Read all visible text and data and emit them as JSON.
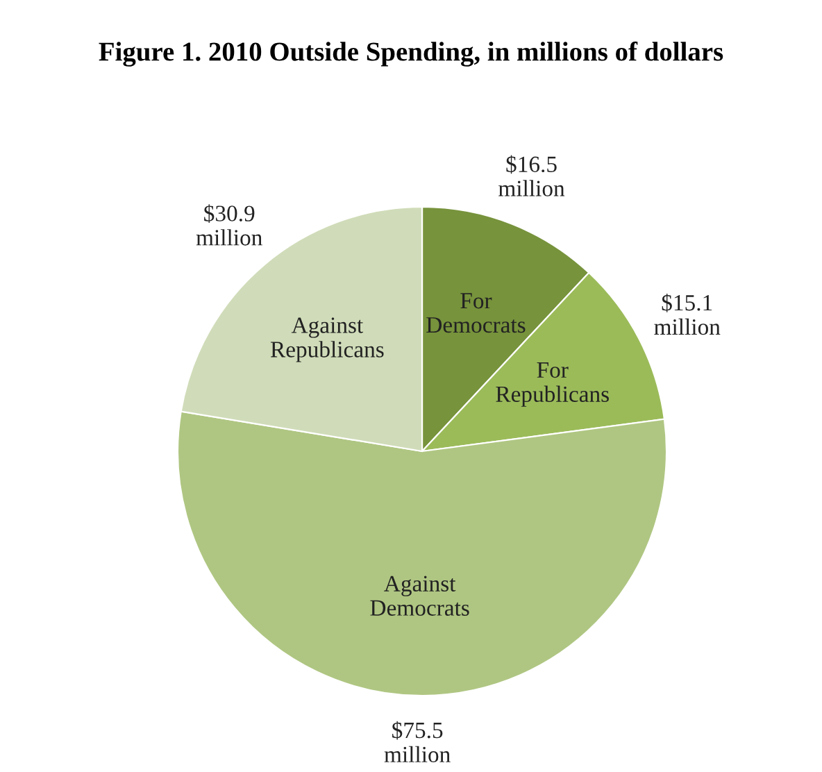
{
  "chart_data": {
    "type": "pie",
    "title": "Figure 1. 2010 Outside Spending, in millions of dollars",
    "categories": [
      "For Democrats",
      "For Republicans",
      "Against Democrats",
      "Against Republicans"
    ],
    "values": [
      16.5,
      15.1,
      75.5,
      30.9
    ],
    "colors": [
      "#77933c",
      "#9bbb59",
      "#afc682",
      "#d0dcb9"
    ],
    "value_labels": [
      "$16.5 million",
      "$15.1 million",
      "$75.5 million",
      "$30.9 million"
    ]
  }
}
